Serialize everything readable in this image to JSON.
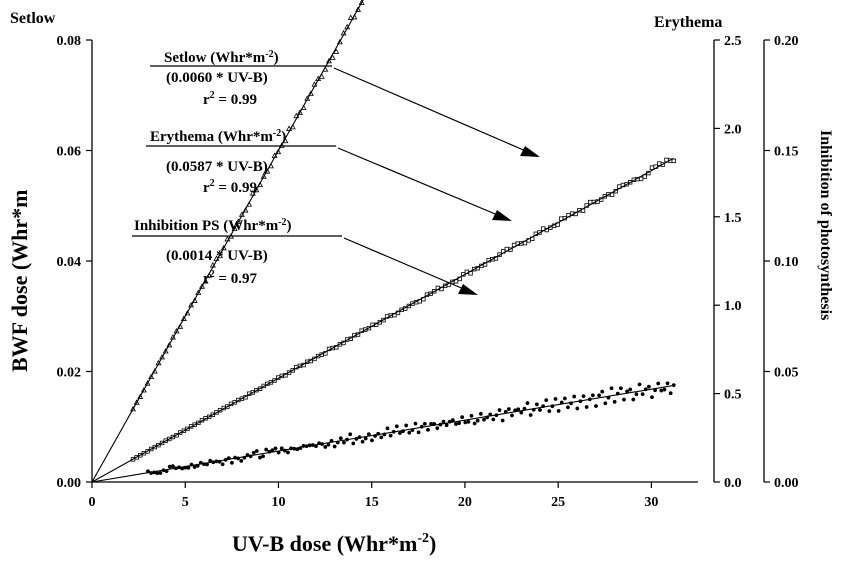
{
  "chart_data": {
    "type": "scatter",
    "left_corner_label": "Setlow",
    "erythema_corner_label": "Erythema",
    "xlabel": "UV-B dose (Whr*m",
    "xlabel_sup": "-2",
    "xlabel_close": ")",
    "ylabel": "BWF dose (Whr*m",
    "right_ylabel": "Inhibition of photosynthesis",
    "x_axis": {
      "lim": [
        0,
        32.5
      ],
      "ticks": [
        "0",
        "5",
        "10",
        "15",
        "20",
        "25",
        "30"
      ]
    },
    "y_left": {
      "lim": [
        0,
        0.08
      ],
      "ticks": [
        "0.00",
        "0.02",
        "0.04",
        "0.06",
        "0.08"
      ]
    },
    "y_erythema": {
      "lim": [
        0,
        2.5
      ],
      "ticks": [
        "0.0",
        "0.5",
        "1.0",
        "1.5",
        "2.0",
        "2.5"
      ]
    },
    "y_inhibition": {
      "lim": [
        0,
        0.2
      ],
      "ticks": [
        "0.00",
        "0.05",
        "0.10",
        "0.15",
        "0.20"
      ]
    },
    "series": [
      {
        "name": "Setlow",
        "axis": "left",
        "slope": 0.006,
        "x_range": [
          2.2,
          31.2
        ],
        "marker": "triangle"
      },
      {
        "name": "Erythema",
        "axis": "erythema",
        "slope": 0.0587,
        "x_range": [
          2.2,
          31.2
        ],
        "marker": "square"
      },
      {
        "name": "Inhibition PS",
        "axis": "inhibition",
        "slope": 0.0014,
        "x_range": [
          3.0,
          31.2
        ],
        "marker": "circle"
      }
    ],
    "annotations": [
      {
        "title": "Setlow (Whr*m",
        "title_sup": "-2",
        "title_close": ")",
        "equation": "(0.0060 * UV-B)",
        "r2_label": "r",
        "r2_sup": "2",
        "r2_value": " = 0.99"
      },
      {
        "title": "Erythema (Whr*m",
        "title_sup": "-2",
        "title_close": ")",
        "equation": "(0.0587 * UV-B)",
        "r2_label": "r",
        "r2_sup": "2",
        "r2_value": "  = 0.99"
      },
      {
        "title": "Inhibition PS (Whr*m",
        "title_sup": "-2",
        "title_close": ")",
        "equation": "(0.0014 * UV-B)",
        "r2_label": "r",
        "r2_sup": "2",
        "r2_value": " = 0.97"
      }
    ]
  }
}
